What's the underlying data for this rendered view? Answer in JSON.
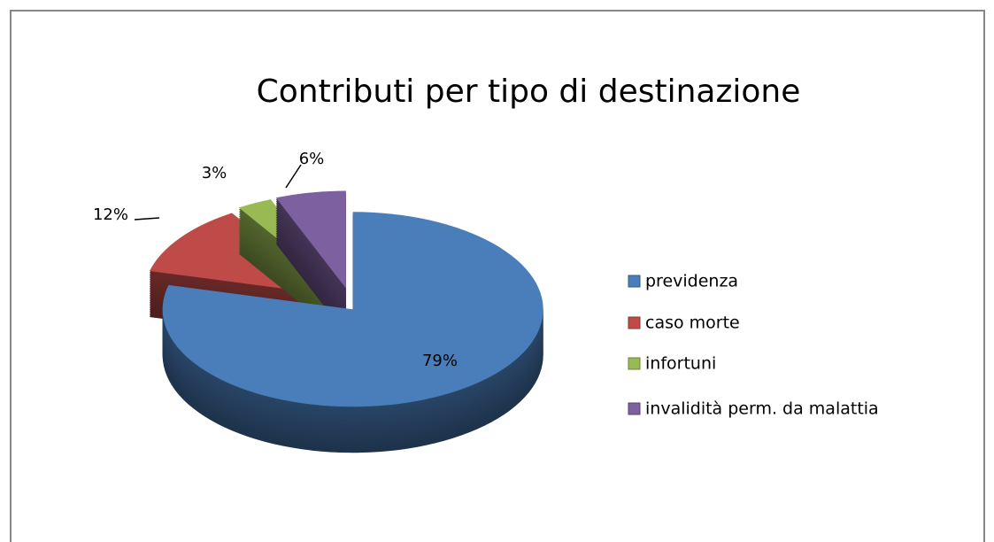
{
  "chart_data": {
    "type": "pie3d",
    "title": "Contributi per tipo di destinazione",
    "categories": [
      "previdenza",
      "caso morte",
      "infortuni",
      "invalidità perm. da malattia"
    ],
    "values": [
      79,
      12,
      3,
      6
    ],
    "value_labels": [
      "79%",
      "12%",
      "3%",
      "6%"
    ],
    "colors": [
      "#4a7ebb",
      "#be4b48",
      "#98b954",
      "#7d60a0"
    ],
    "legend": "right"
  }
}
